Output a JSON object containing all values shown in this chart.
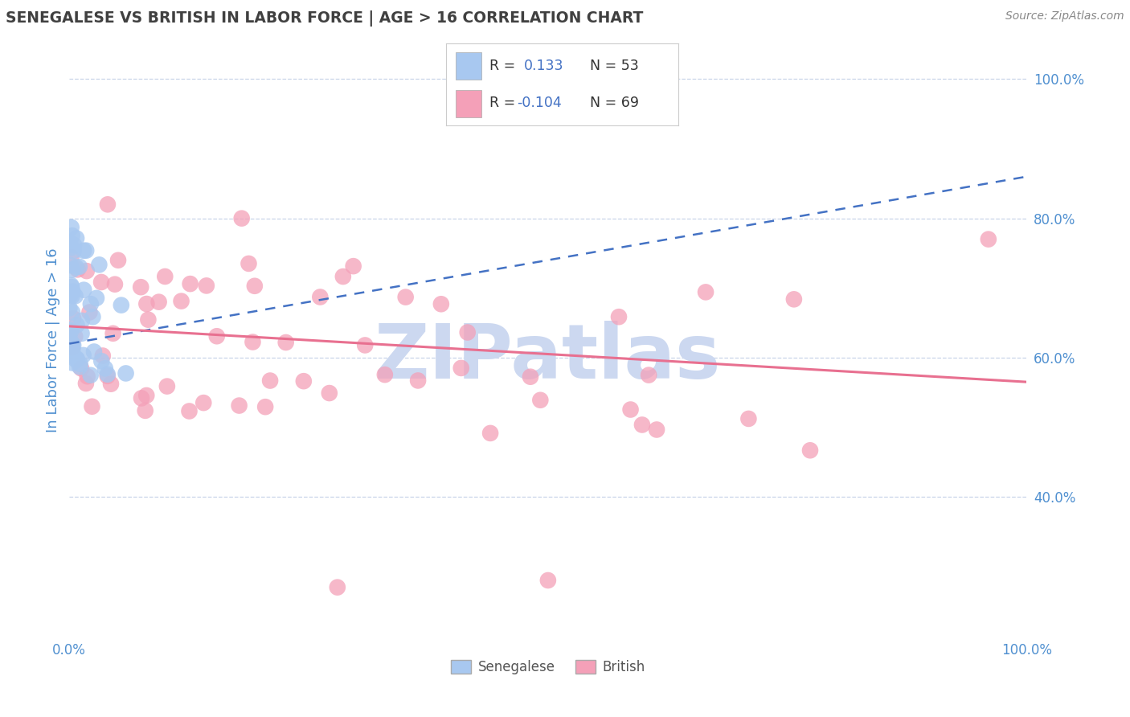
{
  "title": "SENEGALESE VS BRITISH IN LABOR FORCE | AGE > 16 CORRELATION CHART",
  "source": "Source: ZipAtlas.com",
  "ylabel": "In Labor Force | Age > 16",
  "xlim": [
    0.0,
    1.0
  ],
  "ylim": [
    0.2,
    1.05
  ],
  "yticks": [
    0.4,
    0.6,
    0.8,
    1.0
  ],
  "ytick_labels": [
    "40.0%",
    "60.0%",
    "80.0%",
    "100.0%"
  ],
  "xticks": [
    0.0,
    1.0
  ],
  "xtick_labels": [
    "0.0%",
    "100.0%"
  ],
  "legend_r1": "R =  0.133",
  "legend_n1": "N = 53",
  "legend_r2": "R = -0.104",
  "legend_n2": "N = 69",
  "color_senegalese": "#a8c8f0",
  "color_british": "#f4a0b8",
  "trendline_senegalese_color": "#4472c4",
  "trendline_british_color": "#e87090",
  "watermark": "ZIPatlas",
  "watermark_color": "#ccd8f0",
  "background_color": "#ffffff",
  "grid_color": "#c8d4e8",
  "title_color": "#404040",
  "axis_label_color": "#5090d0",
  "source_color": "#888888",
  "legend_text_color": "#333333",
  "legend_r_color": "#4472c4",
  "sen_trendline_start_x": 0.0,
  "sen_trendline_end_x": 1.0,
  "sen_trendline_start_y": 0.62,
  "sen_trendline_end_y": 0.86,
  "brit_trendline_start_x": 0.0,
  "brit_trendline_end_x": 1.0,
  "brit_trendline_start_y": 0.645,
  "brit_trendline_end_y": 0.565
}
